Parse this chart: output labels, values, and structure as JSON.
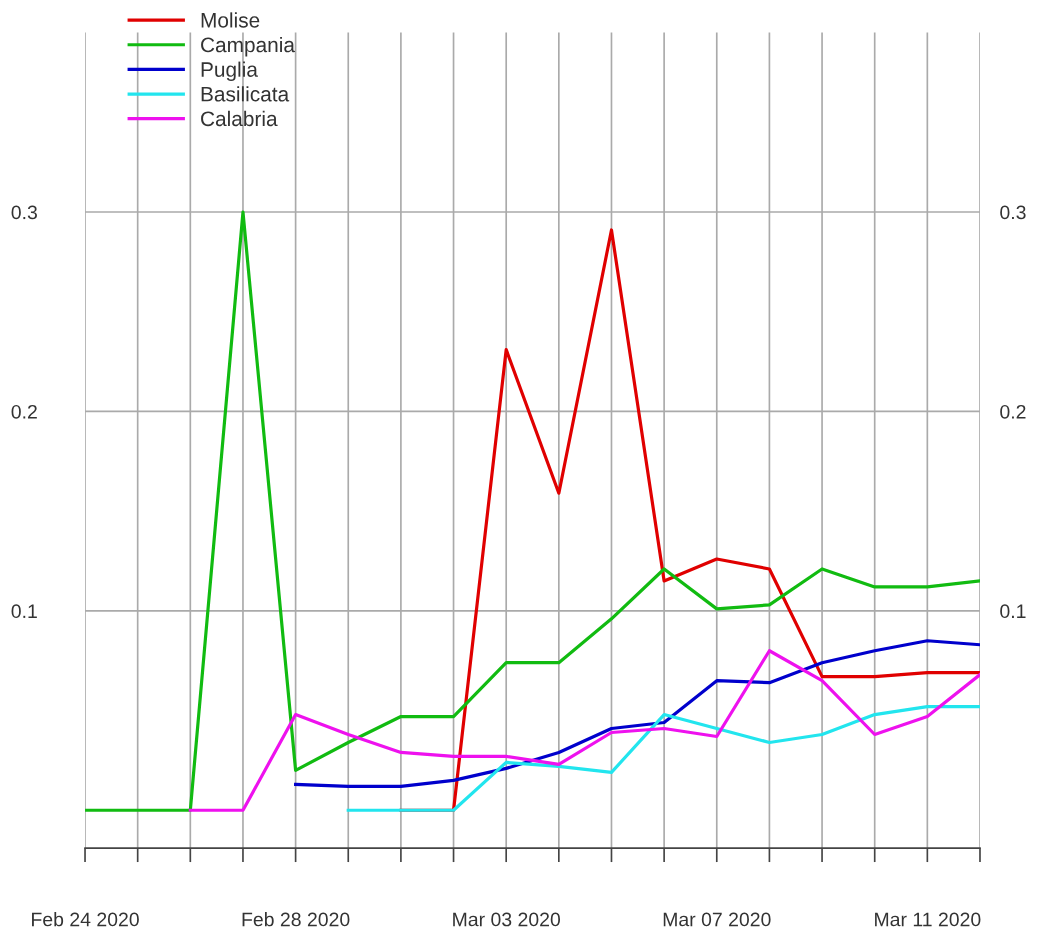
{
  "chart_data": {
    "type": "line",
    "x": [
      "2020-02-24",
      "2020-02-25",
      "2020-02-26",
      "2020-02-27",
      "2020-02-28",
      "2020-02-29",
      "2020-03-01",
      "2020-03-02",
      "2020-03-03",
      "2020-03-04",
      "2020-03-05",
      "2020-03-06",
      "2020-03-07",
      "2020-03-08",
      "2020-03-09",
      "2020-03-10",
      "2020-03-11",
      "2020-03-12"
    ],
    "series": [
      {
        "name": "Molise",
        "color": "#e00000",
        "values": [
          null,
          null,
          null,
          null,
          null,
          null,
          0,
          0,
          0.231,
          0.159,
          0.291,
          0.115,
          0.126,
          0.121,
          0.067,
          0.067,
          0.069,
          0.069
        ]
      },
      {
        "name": "Campania",
        "color": "#11bb11",
        "values": [
          0,
          0,
          0,
          0.3,
          0.02,
          0.034,
          0.047,
          0.047,
          0.074,
          0.074,
          0.096,
          0.121,
          0.101,
          0.103,
          0.121,
          0.112,
          0.112,
          0.115
        ]
      },
      {
        "name": "Puglia",
        "color": "#0000cc",
        "values": [
          null,
          null,
          null,
          null,
          0.013,
          0.012,
          0.012,
          0.015,
          0.021,
          0.029,
          0.041,
          0.044,
          0.065,
          0.064,
          0.074,
          0.08,
          0.085,
          0.083
        ]
      },
      {
        "name": "Basilicata",
        "color": "#22e5ee",
        "values": [
          null,
          null,
          null,
          null,
          null,
          0,
          0,
          0,
          0.024,
          0.022,
          0.019,
          0.048,
          0.041,
          0.034,
          0.038,
          0.048,
          0.052,
          0.052
        ]
      },
      {
        "name": "Calabria",
        "color": "#ee11ee",
        "values": [
          null,
          null,
          0,
          0,
          0.048,
          0.038,
          0.029,
          0.027,
          0.027,
          0.023,
          0.039,
          0.041,
          0.037,
          0.08,
          0.065,
          0.038,
          0.047,
          0.068
        ]
      }
    ],
    "xlim": [
      "2020-02-24",
      "2020-03-12"
    ],
    "xticks": [
      {
        "value": "2020-02-24",
        "label": "Feb 24 2020"
      },
      {
        "value": "2020-02-25",
        "label": null
      },
      {
        "value": "2020-02-26",
        "label": null
      },
      {
        "value": "2020-02-27",
        "label": null
      },
      {
        "value": "2020-02-28",
        "label": "Feb 28 2020"
      },
      {
        "value": "2020-02-29",
        "label": null
      },
      {
        "value": "2020-03-01",
        "label": null
      },
      {
        "value": "2020-03-02",
        "label": null
      },
      {
        "value": "2020-03-03",
        "label": "Mar 03 2020"
      },
      {
        "value": "2020-03-04",
        "label": null
      },
      {
        "value": "2020-03-05",
        "label": null
      },
      {
        "value": "2020-03-06",
        "label": null
      },
      {
        "value": "2020-03-07",
        "label": "Mar 07 2020"
      },
      {
        "value": "2020-03-08",
        "label": null
      },
      {
        "value": "2020-03-09",
        "label": null
      },
      {
        "value": "2020-03-10",
        "label": null
      },
      {
        "value": "2020-03-11",
        "label": "Mar 11 2020"
      },
      {
        "value": "2020-03-12",
        "label": null
      }
    ],
    "ylim": [
      -0.019,
      0.39
    ],
    "yticks": [
      0.1,
      0.2,
      0.3
    ],
    "y2lim": [
      -0.019,
      0.39
    ],
    "y2ticks": [
      0.1,
      0.2,
      0.3
    ],
    "grid": true,
    "legend": "top left",
    "marker": "none",
    "line_style": "solid"
  }
}
